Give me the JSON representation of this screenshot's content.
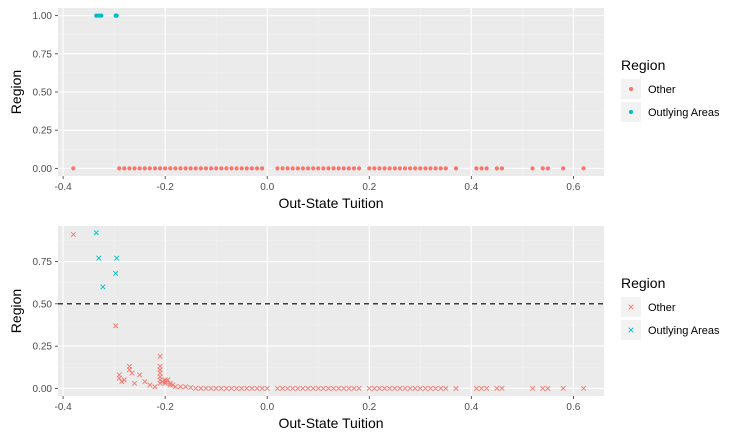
{
  "colors": {
    "panel_bg": "#EBEBEB",
    "grid_major": "#FFFFFF",
    "grid_minor": "#F2F2F2",
    "other": "#F8766D",
    "outlying": "#00BFC4",
    "key_bg": "#F2F2F2",
    "hline": "#000000"
  },
  "chart_data": [
    {
      "type": "scatter",
      "title": "",
      "xlabel": "Out-State Tuition",
      "ylabel": "Region",
      "xlim": [
        -0.41,
        0.66
      ],
      "ylim": [
        -0.05,
        1.05
      ],
      "xticks": [
        -0.4,
        -0.2,
        0.0,
        0.2,
        0.4,
        0.6
      ],
      "xtick_labels": [
        "-0.4",
        "-0.2",
        "0.0",
        "0.2",
        "0.4",
        "0.6"
      ],
      "yticks": [
        0,
        0.25,
        0.5,
        0.75,
        1
      ],
      "ytick_labels": [
        "0.00",
        "0.25",
        "0.50",
        "0.75",
        "1.00"
      ],
      "grid": true,
      "legend": {
        "title": "Region",
        "position": "right",
        "marker": "dot",
        "entries": [
          "Other",
          "Outlying Areas"
        ]
      },
      "series": [
        {
          "name": "Other",
          "color_key": "other",
          "marker": "dot",
          "points": [
            [
              -0.38,
              0
            ],
            [
              -0.29,
              0
            ],
            [
              -0.28,
              0
            ],
            [
              -0.27,
              0
            ],
            [
              -0.26,
              0
            ],
            [
              -0.25,
              0
            ],
            [
              -0.24,
              0
            ],
            [
              -0.23,
              0
            ],
            [
              -0.22,
              0
            ],
            [
              -0.21,
              0
            ],
            [
              -0.2,
              0
            ],
            [
              -0.19,
              0
            ],
            [
              -0.18,
              0
            ],
            [
              -0.17,
              0
            ],
            [
              -0.16,
              0
            ],
            [
              -0.15,
              0
            ],
            [
              -0.14,
              0
            ],
            [
              -0.13,
              0
            ],
            [
              -0.12,
              0
            ],
            [
              -0.11,
              0
            ],
            [
              -0.1,
              0
            ],
            [
              -0.09,
              0
            ],
            [
              -0.08,
              0
            ],
            [
              -0.07,
              0
            ],
            [
              -0.06,
              0
            ],
            [
              -0.05,
              0
            ],
            [
              -0.04,
              0
            ],
            [
              -0.03,
              0
            ],
            [
              -0.02,
              0
            ],
            [
              -0.01,
              0
            ],
            [
              0.02,
              0
            ],
            [
              0.03,
              0
            ],
            [
              0.04,
              0
            ],
            [
              0.05,
              0
            ],
            [
              0.06,
              0
            ],
            [
              0.07,
              0
            ],
            [
              0.08,
              0
            ],
            [
              0.09,
              0
            ],
            [
              0.1,
              0
            ],
            [
              0.11,
              0
            ],
            [
              0.12,
              0
            ],
            [
              0.13,
              0
            ],
            [
              0.14,
              0
            ],
            [
              0.15,
              0
            ],
            [
              0.16,
              0
            ],
            [
              0.17,
              0
            ],
            [
              0.18,
              0
            ],
            [
              0.2,
              0
            ],
            [
              0.21,
              0
            ],
            [
              0.22,
              0
            ],
            [
              0.23,
              0
            ],
            [
              0.24,
              0
            ],
            [
              0.25,
              0
            ],
            [
              0.26,
              0
            ],
            [
              0.27,
              0
            ],
            [
              0.28,
              0
            ],
            [
              0.29,
              0
            ],
            [
              0.3,
              0
            ],
            [
              0.31,
              0
            ],
            [
              0.32,
              0
            ],
            [
              0.33,
              0
            ],
            [
              0.34,
              0
            ],
            [
              0.35,
              0
            ],
            [
              0.37,
              0
            ],
            [
              0.41,
              0
            ],
            [
              0.42,
              0
            ],
            [
              0.43,
              0
            ],
            [
              0.45,
              0
            ],
            [
              0.46,
              0
            ],
            [
              0.52,
              0
            ],
            [
              0.54,
              0
            ],
            [
              0.55,
              0
            ],
            [
              0.58,
              0
            ],
            [
              0.62,
              0
            ]
          ]
        },
        {
          "name": "Outlying Areas",
          "color_key": "outlying",
          "marker": "dot",
          "points": [
            [
              -0.335,
              1
            ],
            [
              -0.33,
              1
            ],
            [
              -0.325,
              1
            ],
            [
              -0.297,
              1
            ],
            [
              -0.295,
              1
            ]
          ]
        }
      ]
    },
    {
      "type": "scatter",
      "title": "",
      "xlabel": "Out-State Tuition",
      "ylabel": "Region",
      "xlim": [
        -0.41,
        0.66
      ],
      "ylim": [
        -0.045,
        0.96
      ],
      "xticks": [
        -0.4,
        -0.2,
        0.0,
        0.2,
        0.4,
        0.6
      ],
      "xtick_labels": [
        "-0.4",
        "-0.2",
        "0.0",
        "0.2",
        "0.4",
        "0.6"
      ],
      "yticks": [
        0,
        0.25,
        0.5,
        0.75
      ],
      "ytick_labels": [
        "0.00",
        "0.25",
        "0.50",
        "0.75"
      ],
      "grid": true,
      "hline": {
        "y": 0.5,
        "style": "dashed"
      },
      "legend": {
        "title": "Region",
        "position": "right",
        "marker": "x",
        "entries": [
          "Other",
          "Outlying Areas"
        ]
      },
      "series": [
        {
          "name": "Other",
          "color_key": "other",
          "marker": "x",
          "points": [
            [
              -0.38,
              0.91
            ],
            [
              -0.297,
              0.37
            ],
            [
              -0.29,
              0.08
            ],
            [
              -0.29,
              0.06
            ],
            [
              -0.285,
              0.04
            ],
            [
              -0.28,
              0.05
            ],
            [
              -0.27,
              0.13
            ],
            [
              -0.27,
              0.11
            ],
            [
              -0.265,
              0.09
            ],
            [
              -0.26,
              0.03
            ],
            [
              -0.25,
              0.08
            ],
            [
              -0.24,
              0.04
            ],
            [
              -0.23,
              0.02
            ],
            [
              -0.22,
              0.01
            ],
            [
              -0.21,
              0.19
            ],
            [
              -0.21,
              0.13
            ],
            [
              -0.21,
              0.11
            ],
            [
              -0.21,
              0.09
            ],
            [
              -0.21,
              0.07
            ],
            [
              -0.21,
              0.05
            ],
            [
              -0.21,
              0.03
            ],
            [
              -0.205,
              0.04
            ],
            [
              -0.2,
              0.05
            ],
            [
              -0.2,
              0.04
            ],
            [
              -0.2,
              0.03
            ],
            [
              -0.195,
              0.05
            ],
            [
              -0.19,
              0.03
            ],
            [
              -0.19,
              0.02
            ],
            [
              -0.185,
              0.02
            ],
            [
              -0.18,
              0.01
            ],
            [
              -0.17,
              0.01
            ],
            [
              -0.16,
              0.01
            ],
            [
              -0.15,
              0.005
            ],
            [
              -0.14,
              0
            ],
            [
              -0.13,
              0
            ],
            [
              -0.12,
              0
            ],
            [
              -0.11,
              0
            ],
            [
              -0.1,
              0
            ],
            [
              -0.09,
              0
            ],
            [
              -0.08,
              0
            ],
            [
              -0.07,
              0
            ],
            [
              -0.06,
              0
            ],
            [
              -0.05,
              0
            ],
            [
              -0.04,
              0
            ],
            [
              -0.03,
              0
            ],
            [
              -0.02,
              0
            ],
            [
              -0.01,
              0
            ],
            [
              0.0,
              0
            ],
            [
              0.02,
              0
            ],
            [
              0.03,
              0
            ],
            [
              0.04,
              0
            ],
            [
              0.05,
              0
            ],
            [
              0.06,
              0
            ],
            [
              0.07,
              0
            ],
            [
              0.08,
              0
            ],
            [
              0.09,
              0
            ],
            [
              0.1,
              0
            ],
            [
              0.11,
              0
            ],
            [
              0.12,
              0
            ],
            [
              0.13,
              0
            ],
            [
              0.14,
              0
            ],
            [
              0.15,
              0
            ],
            [
              0.16,
              0
            ],
            [
              0.17,
              0
            ],
            [
              0.18,
              0
            ],
            [
              0.2,
              0
            ],
            [
              0.21,
              0
            ],
            [
              0.22,
              0
            ],
            [
              0.23,
              0
            ],
            [
              0.24,
              0
            ],
            [
              0.25,
              0
            ],
            [
              0.26,
              0
            ],
            [
              0.27,
              0
            ],
            [
              0.28,
              0
            ],
            [
              0.29,
              0
            ],
            [
              0.3,
              0
            ],
            [
              0.31,
              0
            ],
            [
              0.32,
              0
            ],
            [
              0.33,
              0
            ],
            [
              0.34,
              0
            ],
            [
              0.35,
              0
            ],
            [
              0.37,
              0
            ],
            [
              0.41,
              0
            ],
            [
              0.42,
              0
            ],
            [
              0.43,
              0
            ],
            [
              0.45,
              0
            ],
            [
              0.46,
              0
            ],
            [
              0.52,
              0
            ],
            [
              0.54,
              0
            ],
            [
              0.55,
              0
            ],
            [
              0.58,
              0
            ],
            [
              0.62,
              0
            ]
          ]
        },
        {
          "name": "Outlying Areas",
          "color_key": "outlying",
          "marker": "x",
          "points": [
            [
              -0.335,
              0.92
            ],
            [
              -0.33,
              0.77
            ],
            [
              -0.322,
              0.6
            ],
            [
              -0.297,
              0.68
            ],
            [
              -0.295,
              0.77
            ]
          ]
        }
      ]
    }
  ]
}
